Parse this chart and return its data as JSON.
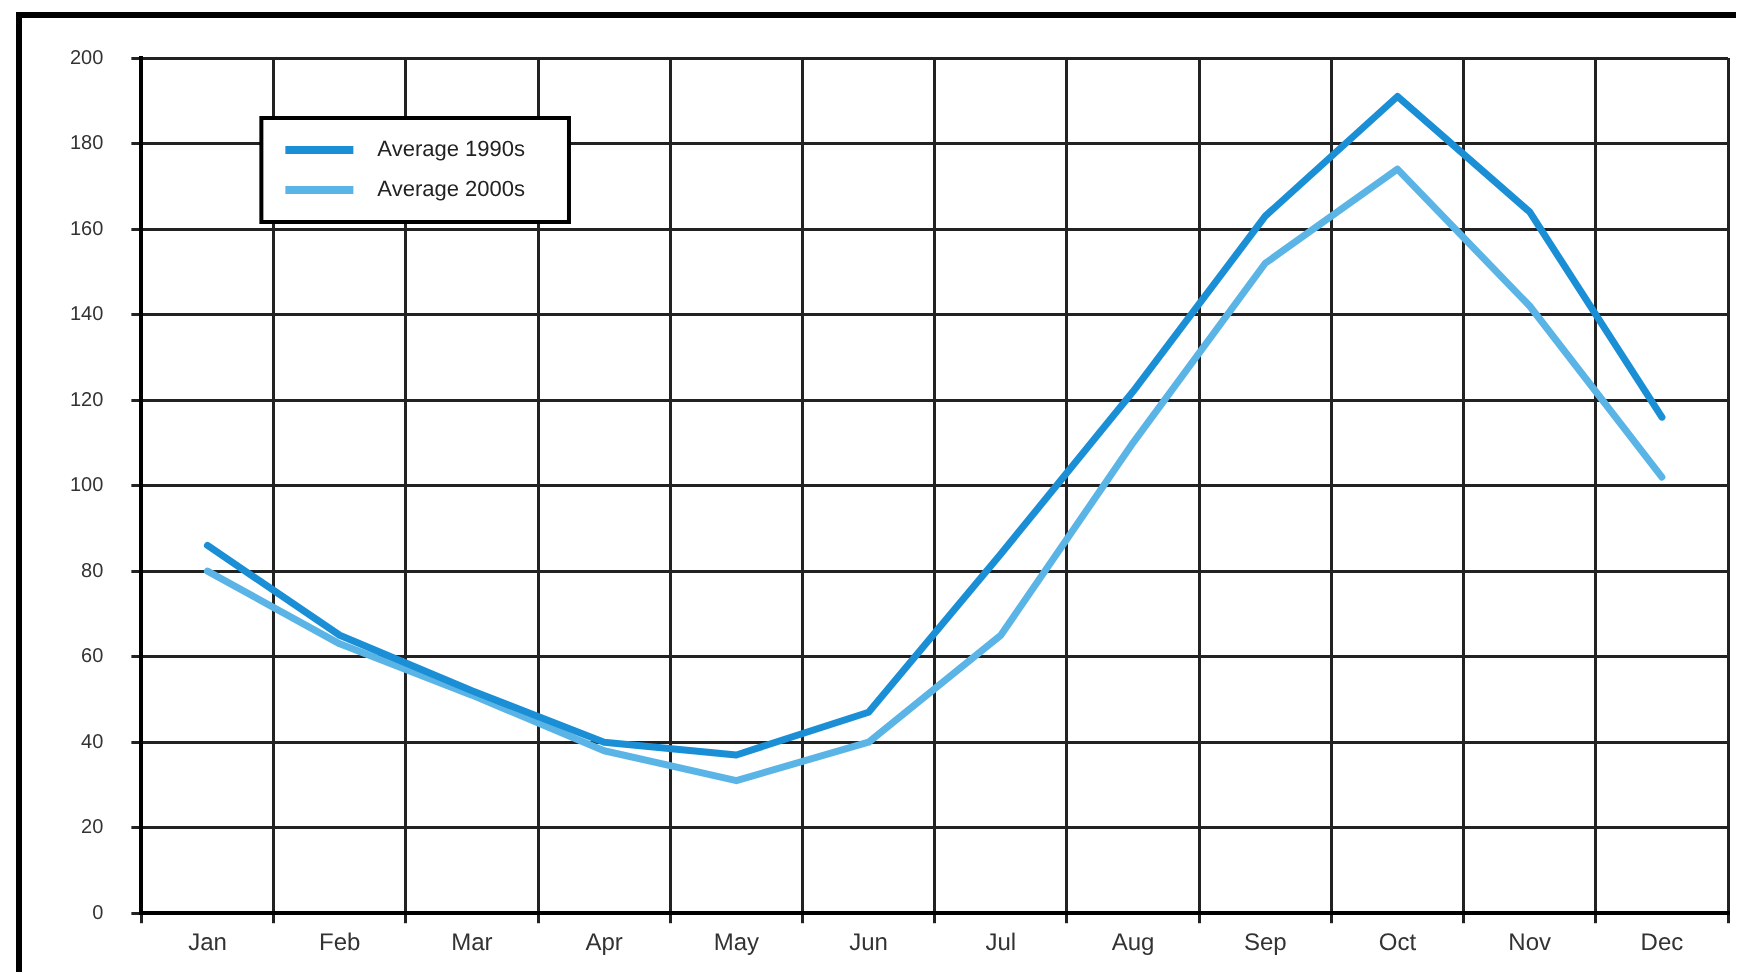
{
  "chart_data": {
    "type": "line",
    "categories": [
      "Jan",
      "Feb",
      "Mar",
      "Apr",
      "May",
      "Jun",
      "Jul",
      "Aug",
      "Sep",
      "Oct",
      "Nov",
      "Dec"
    ],
    "series": [
      {
        "name": "Average 1990s",
        "color": "#1a8fd6",
        "values": [
          86,
          65,
          52,
          40,
          37,
          47,
          84,
          122,
          163,
          191,
          164,
          116
        ]
      },
      {
        "name": "Average 2000s",
        "color": "#5ab4e6",
        "values": [
          80,
          63,
          51,
          38,
          31,
          40,
          65,
          110,
          152,
          174,
          142,
          102
        ]
      }
    ],
    "ylim": [
      0,
      200
    ],
    "yticks": [
      0,
      20,
      40,
      60,
      80,
      100,
      120,
      140,
      160,
      180,
      200
    ],
    "grid": true,
    "legend": "top left",
    "marker": "none",
    "line_style": "solid"
  }
}
